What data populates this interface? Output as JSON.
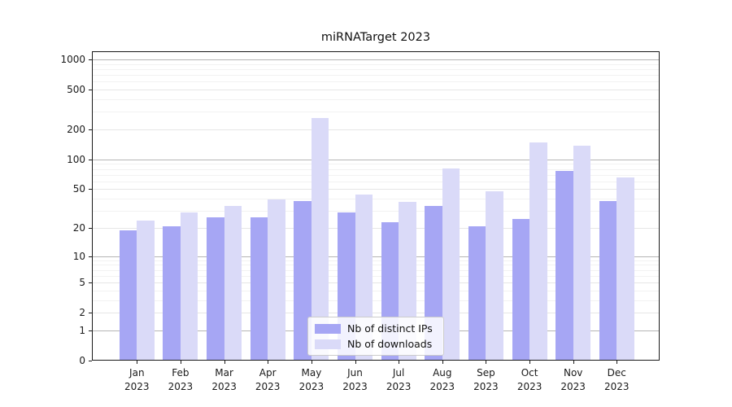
{
  "title": "miRNATarget 2023",
  "colors": {
    "ips": "#a6a6f4",
    "downloads": "#dadaf8",
    "grid_major": "#b5b5b5",
    "grid_mid": "#e6e6e6",
    "grid_minor": "#f2f2f2",
    "axis": "#1a1a1a"
  },
  "legend": {
    "items": [
      {
        "label": "Nb of distinct IPs",
        "series": "ips"
      },
      {
        "label": "Nb of downloads",
        "series": "downloads"
      }
    ]
  },
  "chart_data": {
    "type": "bar",
    "title": "miRNATarget 2023",
    "categories": [
      "Jan 2023",
      "Feb 2023",
      "Mar 2023",
      "Apr 2023",
      "May 2023",
      "Jun 2023",
      "Jul 2023",
      "Aug 2023",
      "Sep 2023",
      "Oct 2023",
      "Nov 2023",
      "Dec 2023"
    ],
    "series": [
      {
        "name": "Nb of distinct IPs",
        "values": [
          19,
          21,
          26,
          26,
          38,
          29,
          23,
          34,
          21,
          25,
          77,
          38
        ]
      },
      {
        "name": "Nb of downloads",
        "values": [
          24,
          29,
          34,
          39,
          260,
          44,
          37,
          81,
          48,
          148,
          137,
          66
        ]
      }
    ],
    "yscale": "symlog",
    "yticks": [
      0,
      1,
      2,
      5,
      10,
      20,
      50,
      100,
      200,
      500,
      1000
    ],
    "ylim": [
      0,
      1200
    ],
    "xlabel": "",
    "ylabel": "",
    "grid": true,
    "legend_position": "lower center"
  }
}
